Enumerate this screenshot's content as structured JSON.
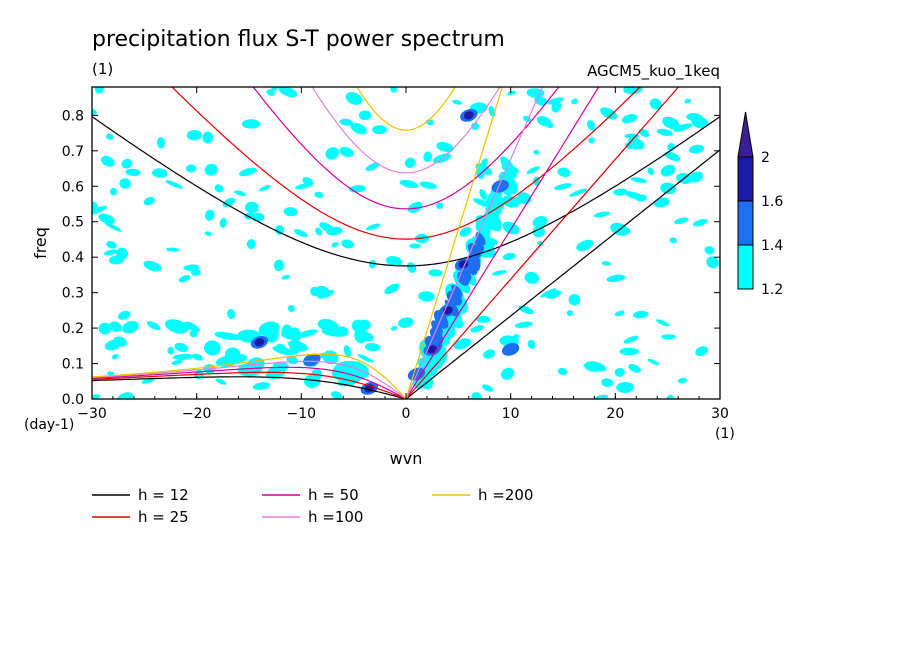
{
  "figure": {
    "title": "precipitation flux S-T power spectrum",
    "subtitle": "(1)",
    "run_label": "AGCM5_kuo_1keq",
    "y_unit": "(day-1)",
    "x_unit": "(1)"
  },
  "chart_data": {
    "type": "heatmap",
    "title": "precipitation flux S-T power spectrum",
    "xlabel": "wvn",
    "ylabel": "freq",
    "xlim": [
      -30,
      30
    ],
    "ylim": [
      0,
      0.88
    ],
    "x_ticks": [
      -30,
      -20,
      -10,
      0,
      10,
      20,
      30
    ],
    "y_ticks": [
      0.0,
      0.1,
      0.2,
      0.3,
      0.4,
      0.5,
      0.6,
      0.7,
      0.8
    ],
    "x_tick_labels": [
      "-30",
      "-20",
      "-10",
      "0",
      "10",
      "20",
      "30"
    ],
    "y_tick_labels": [
      "0.0",
      "0.1",
      "0.2",
      "0.3",
      "0.4",
      "0.5",
      "0.6",
      "0.7",
      "0.8"
    ],
    "grid": false,
    "colorbar": {
      "levels": [
        1.2,
        1.4,
        1.6,
        2
      ],
      "level_labels": [
        "1.2",
        "1.4",
        "1.6",
        "2"
      ],
      "colors": [
        "#00ffff",
        "#1e6ef0",
        "#1a1aa6",
        "#3c1e96"
      ]
    },
    "features": [
      {
        "x": 4,
        "y": 0.25,
        "level": 2.0
      },
      {
        "x": 5.5,
        "y": 0.38,
        "level": 1.8
      },
      {
        "x": 6,
        "y": 0.8,
        "level": 1.8
      },
      {
        "x": -14,
        "y": 0.16,
        "level": 1.8
      },
      {
        "x": -9,
        "y": 0.11,
        "level": 1.6
      },
      {
        "x": -3.5,
        "y": 0.03,
        "level": 1.8
      },
      {
        "x": 1,
        "y": 0.07,
        "level": 1.6
      },
      {
        "x": 2.5,
        "y": 0.14,
        "level": 1.8
      },
      {
        "x": 9,
        "y": 0.6,
        "level": 1.6
      },
      {
        "x": 10,
        "y": 0.14,
        "level": 1.6
      }
    ],
    "dispersion_curves": [
      {
        "name": "h = 12",
        "h": 12,
        "color": "#000000"
      },
      {
        "name": "h = 25",
        "h": 25,
        "color": "#e00000"
      },
      {
        "name": "h = 50",
        "h": 50,
        "color": "#d000a0"
      },
      {
        "name": "h =100",
        "h": 100,
        "color": "#e080e0"
      },
      {
        "name": "h =200",
        "h": 200,
        "color": "#f0c000"
      }
    ],
    "legend_position": "bottom"
  }
}
